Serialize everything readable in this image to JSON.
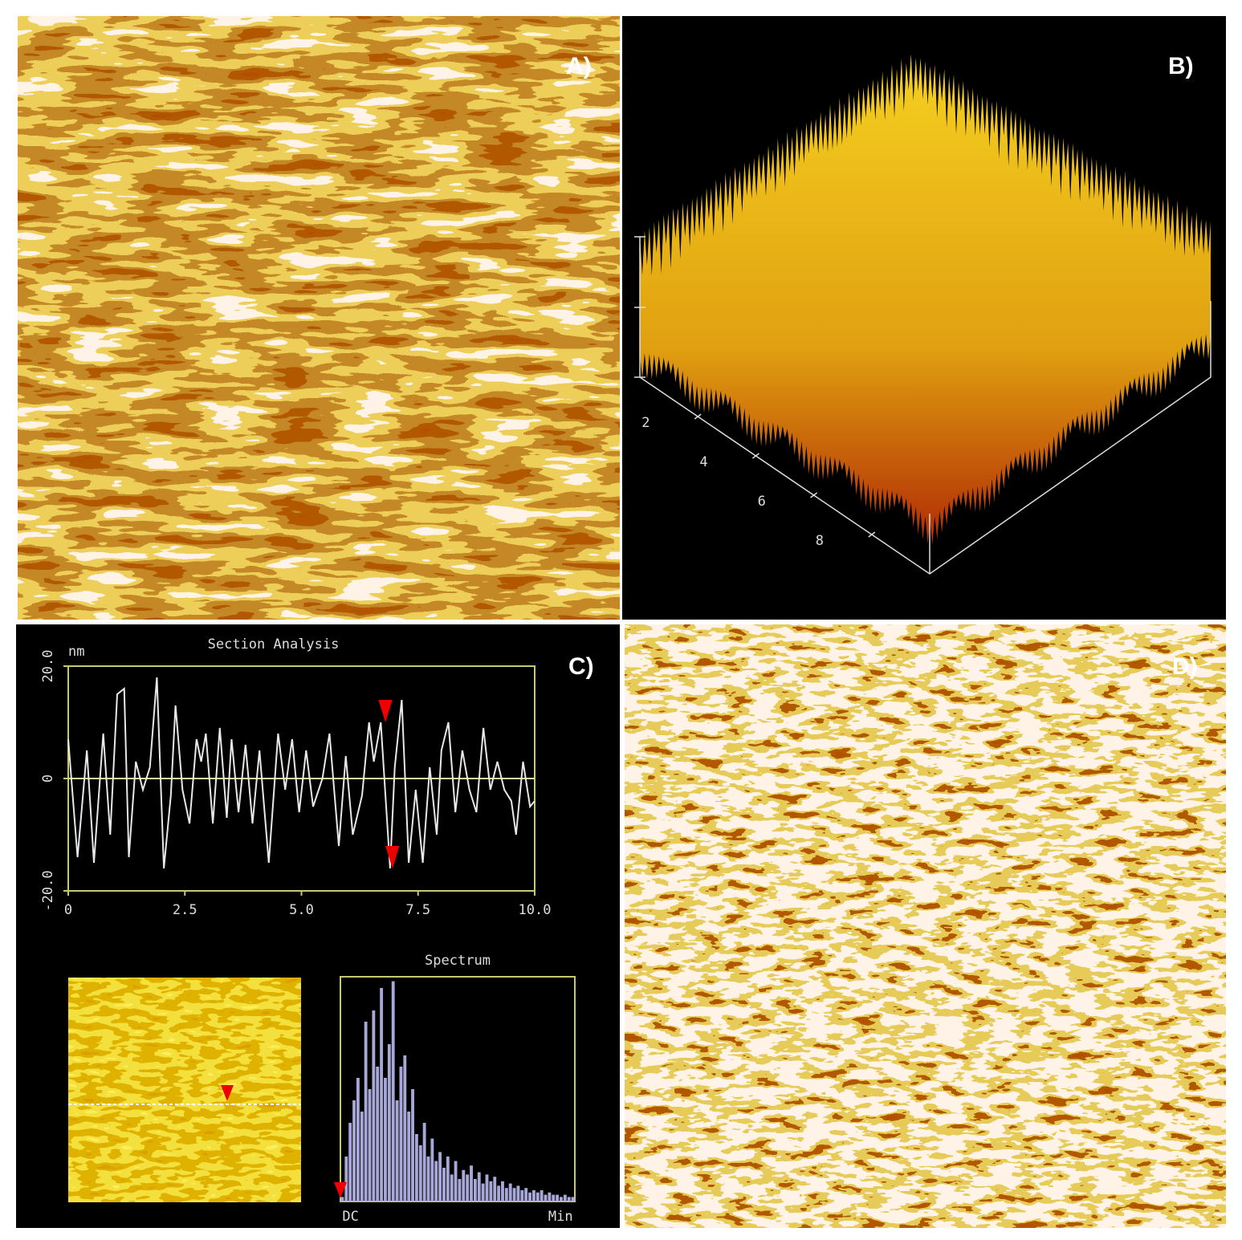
{
  "panels": [
    "A)",
    "B)",
    "C)",
    "D)"
  ],
  "surface_plot": {
    "xticks": [
      2,
      4,
      6,
      8
    ]
  },
  "chart_data": [
    {
      "type": "line",
      "title": "Section Analysis",
      "y_label": "nm",
      "color": "#e8e8e8",
      "zero_line_color": "#e0e0a0",
      "x": [
        0,
        0.2,
        0.4,
        0.55,
        0.75,
        0.9,
        1.05,
        1.2,
        1.3,
        1.45,
        1.6,
        1.75,
        1.9,
        2.05,
        2.2,
        2.3,
        2.45,
        2.6,
        2.75,
        2.85,
        2.95,
        3.1,
        3.25,
        3.4,
        3.5,
        3.65,
        3.8,
        3.95,
        4.1,
        4.3,
        4.5,
        4.65,
        4.8,
        4.95,
        5.1,
        5.25,
        5.45,
        5.6,
        5.8,
        5.95,
        6.1,
        6.3,
        6.45,
        6.55,
        6.7,
        6.9,
        7.0,
        7.15,
        7.3,
        7.45,
        7.6,
        7.75,
        7.9,
        8.0,
        8.15,
        8.3,
        8.45,
        8.6,
        8.75,
        8.9,
        9.05,
        9.2,
        9.35,
        9.5,
        9.6,
        9.75,
        9.9,
        10
      ],
      "values": [
        7,
        -14,
        5,
        -15,
        8,
        -10,
        15,
        16,
        -14,
        3,
        -2,
        2,
        18,
        -16,
        -3,
        13,
        -2,
        -8,
        7,
        3,
        8,
        -8,
        9,
        -7,
        7,
        -6,
        6,
        -8,
        5,
        -15,
        8,
        -2,
        7,
        -6,
        5,
        -5,
        0,
        8,
        -12,
        4,
        -10,
        -3,
        10,
        3,
        10,
        -16,
        2,
        14,
        -15,
        -2,
        -15,
        2,
        -10,
        5,
        10,
        -6,
        5,
        -2,
        -6,
        9,
        -2,
        3,
        -2,
        -4,
        -10,
        3,
        -5,
        -4
      ],
      "xlim": [
        0,
        10
      ],
      "xticks": [
        0,
        2.5,
        {
          "value": 5,
          "label": "5.0"
        },
        7.5,
        {
          "value": 10,
          "label": "10.0"
        }
      ],
      "ylim": [
        -20,
        20
      ],
      "yticks": [
        {
          "value": -20,
          "label": "-20.0"
        },
        0,
        {
          "value": 20,
          "label": "20.0"
        }
      ]
    },
    {
      "type": "bar",
      "title": "Spectrum",
      "color": "#a8a8d8",
      "categories": [
        "DC",
        null,
        null,
        null,
        null,
        null,
        null,
        null,
        null,
        null,
        null,
        null,
        null,
        null,
        null,
        null,
        null,
        null,
        null,
        null,
        null,
        null,
        null,
        null,
        null,
        null,
        null,
        null,
        null,
        null,
        null,
        null,
        null,
        null,
        null,
        null,
        null,
        null,
        null,
        null,
        null,
        null,
        null,
        null,
        null,
        null,
        null,
        null,
        null,
        null,
        null,
        null,
        null,
        null,
        null,
        null,
        null,
        null,
        null,
        "Min"
      ],
      "values": [
        2,
        20,
        35,
        45,
        55,
        40,
        80,
        50,
        85,
        60,
        95,
        55,
        70,
        98,
        45,
        60,
        65,
        40,
        50,
        30,
        25,
        35,
        20,
        28,
        18,
        22,
        15,
        20,
        12,
        18,
        10,
        14,
        12,
        16,
        10,
        13,
        8,
        12,
        9,
        11,
        7,
        9,
        6,
        8,
        6,
        7,
        5,
        6,
        4,
        5,
        4,
        5,
        3,
        4,
        3,
        3,
        2,
        3,
        2,
        2
      ],
      "ylim": [
        0,
        100
      ]
    }
  ]
}
